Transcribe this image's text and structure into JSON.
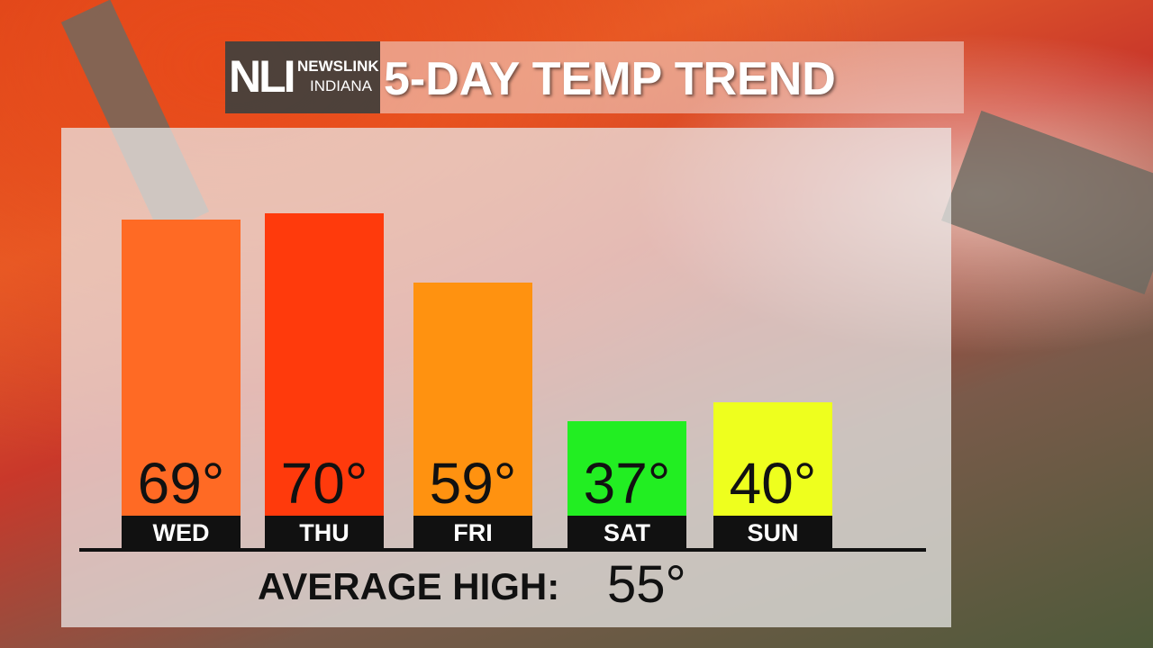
{
  "header": {
    "logo_mark": "NLI",
    "logo_line1": "NEWSLINK",
    "logo_line2": "INDIANA",
    "title": "5-DAY TEMP TREND"
  },
  "chart_data": {
    "type": "bar",
    "title": "5-DAY TEMP TREND",
    "categories": [
      "WED",
      "THU",
      "FRI",
      "SAT",
      "SUN"
    ],
    "values": [
      69,
      70,
      59,
      37,
      40
    ],
    "labels": [
      "69°",
      "70°",
      "59°",
      "37°",
      "40°"
    ],
    "colors": [
      "#ff6a24",
      "#ff3a0c",
      "#ff9210",
      "#22ee22",
      "#eeff1e"
    ],
    "grid": false
  },
  "footer": {
    "label": "AVERAGE HIGH:",
    "value": "55°"
  }
}
